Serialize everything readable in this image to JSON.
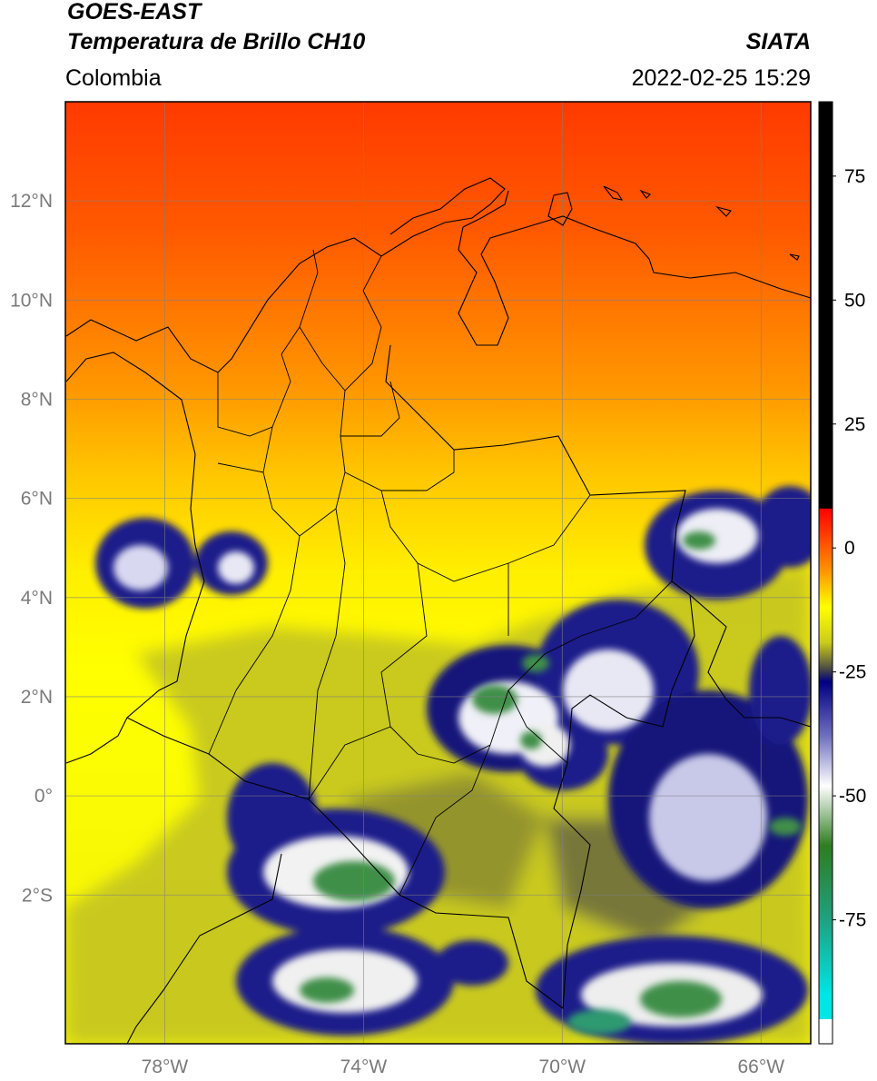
{
  "header": {
    "satellite": "GOES-EAST",
    "product": "Temperatura de Brillo CH10",
    "agency": "SIATA",
    "region": "Colombia",
    "timestamp": "2022-02-25 15:29"
  },
  "map": {
    "lon_range": [
      -80,
      -65
    ],
    "lat_range": [
      -5,
      14
    ],
    "lat_ticks": [
      {
        "value": 12,
        "label": "12°N"
      },
      {
        "value": 10,
        "label": "10°N"
      },
      {
        "value": 8,
        "label": "8°N"
      },
      {
        "value": 6,
        "label": "6°N"
      },
      {
        "value": 4,
        "label": "4°N"
      },
      {
        "value": 2,
        "label": "2°N"
      },
      {
        "value": 0,
        "label": "0°"
      },
      {
        "value": -2,
        "label": "2°S"
      }
    ],
    "lon_ticks": [
      {
        "value": -78,
        "label": "78°W"
      },
      {
        "value": -74,
        "label": "74°W"
      },
      {
        "value": -70,
        "label": "70°W"
      },
      {
        "value": -66,
        "label": "66°W"
      }
    ],
    "grid": true
  },
  "colorbar": {
    "range": [
      -100,
      90
    ],
    "ticks": [
      {
        "value": 75,
        "label": "75"
      },
      {
        "value": 50,
        "label": "50"
      },
      {
        "value": 25,
        "label": "25"
      },
      {
        "value": 0,
        "label": "0"
      },
      {
        "value": -25,
        "label": "-25"
      },
      {
        "value": -50,
        "label": "-50"
      },
      {
        "value": -75,
        "label": "-75"
      }
    ],
    "stops": [
      {
        "value": 90,
        "color": "#000000"
      },
      {
        "value": 8,
        "color": "#000000"
      },
      {
        "value": 7.9,
        "color": "#ff0000"
      },
      {
        "value": 2,
        "color": "#ff4500"
      },
      {
        "value": -5,
        "color": "#ff9900"
      },
      {
        "value": -12,
        "color": "#ffff00"
      },
      {
        "value": -19,
        "color": "#cccc1a"
      },
      {
        "value": -24,
        "color": "#555540"
      },
      {
        "value": -27,
        "color": "#000080"
      },
      {
        "value": -38,
        "color": "#7070c0"
      },
      {
        "value": -48,
        "color": "#ffffff"
      },
      {
        "value": -60,
        "color": "#2e7d1f"
      },
      {
        "value": -75,
        "color": "#20a080"
      },
      {
        "value": -90,
        "color": "#00e5e5"
      },
      {
        "value": -95,
        "color": "#00e5e5"
      },
      {
        "value": -95.1,
        "color": "#ffffff"
      },
      {
        "value": -100,
        "color": "#ffffff"
      }
    ]
  },
  "colors": {
    "cold_cloud_blue": "#0d0d80",
    "cold_cloud_white": "#f0f0f0",
    "cold_cloud_green": "#3f8f4a",
    "warm_red": "#ff3c00",
    "warm_yellow": "#ffff00",
    "olive": "#c8c81e"
  }
}
